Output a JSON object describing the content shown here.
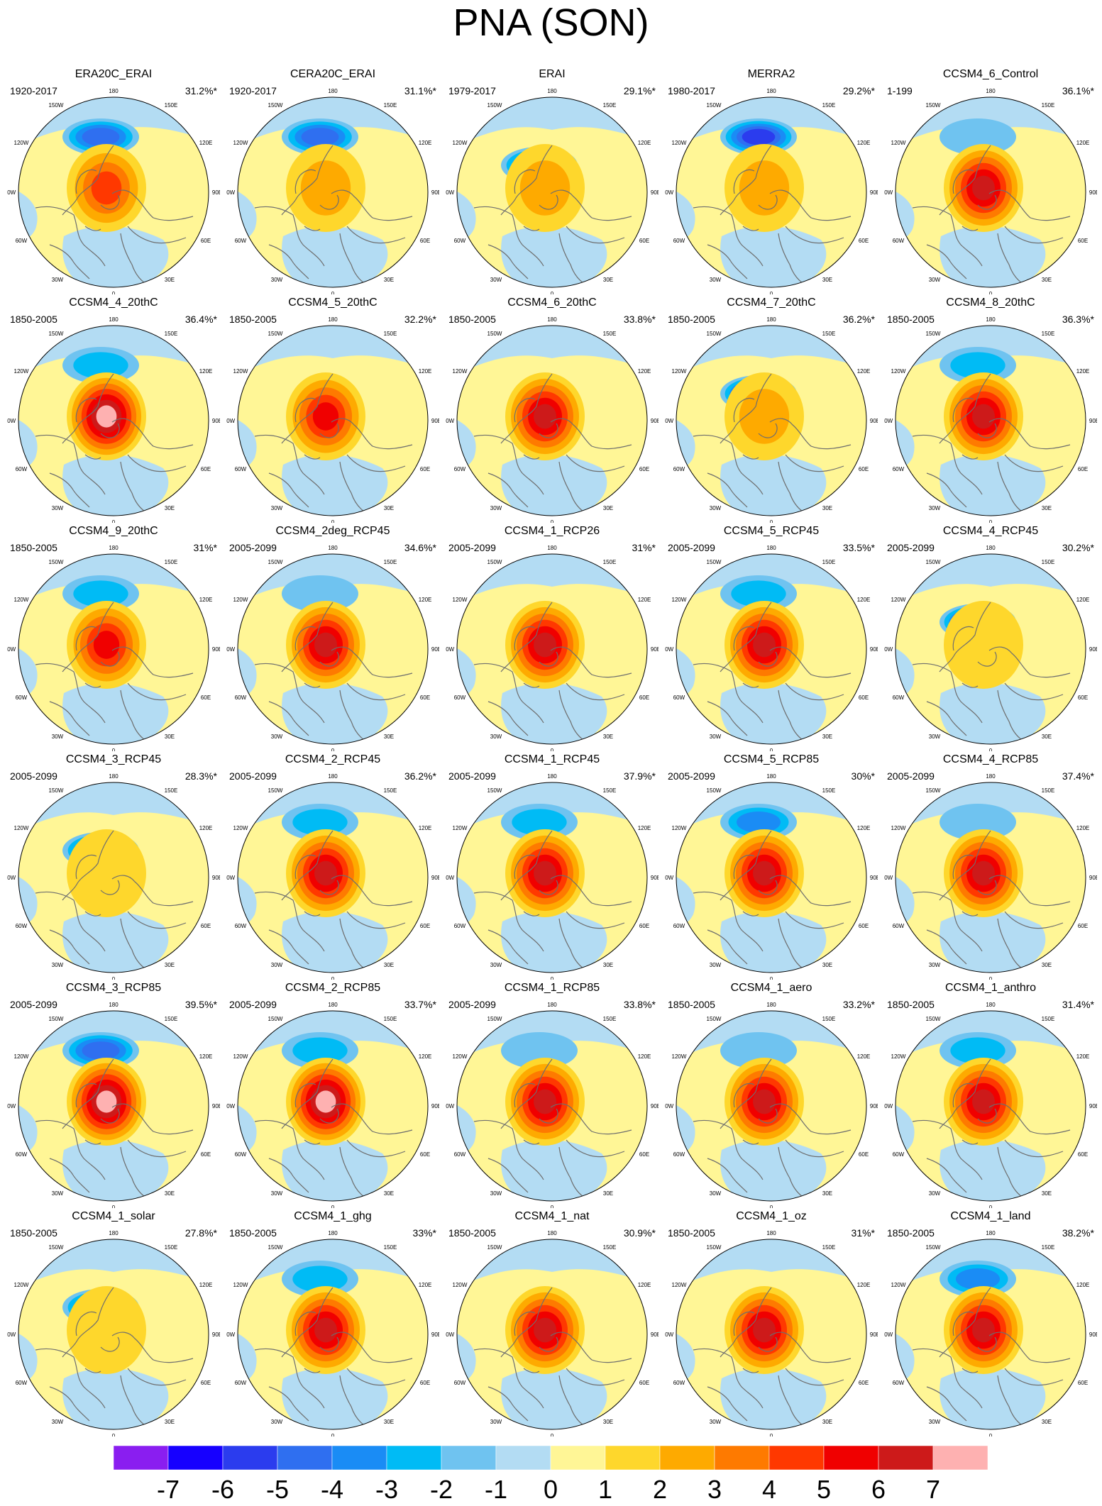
{
  "title": "PNA (SON)",
  "colors": {
    "scale": [
      "#8a1ef0",
      "#1600ff",
      "#2b3cee",
      "#2f6ff0",
      "#1a8cf5",
      "#00bbf5",
      "#6fc3f0",
      "#b3dcf3",
      "#fff696",
      "#fed72c",
      "#feaa00",
      "#fe7a00",
      "#ff3800",
      "#f00000",
      "#cd1a1a",
      "#feb1b1"
    ],
    "coast": "#6e6e6e"
  },
  "colorbar": {
    "labels": [
      "-7",
      "-6",
      "-5",
      "-4",
      "-3",
      "-2",
      "-1",
      "0",
      "1",
      "2",
      "3",
      "4",
      "5",
      "6",
      "7"
    ]
  },
  "lon_labels": [
    "180",
    "150W",
    "150E",
    "120W",
    "120E",
    "90W",
    "90E",
    "60W",
    "60E",
    "30W",
    "30E",
    "0"
  ],
  "panels": [
    {
      "title": "ERA20C_ERAI",
      "period": "1920-2017",
      "pct": "31.2%*",
      "pos": 0.55,
      "neg": -0.45
    },
    {
      "title": "CERA20C_ERAI",
      "period": "1920-2017",
      "pct": "31.1%*",
      "pos": 0.3,
      "neg": -0.45
    },
    {
      "title": "ERAI",
      "period": "1979-2017",
      "pct": "29.1%*",
      "pos": 0.2,
      "neg": -0.6
    },
    {
      "title": "MERRA2",
      "period": "1980-2017",
      "pct": "29.2%*",
      "pos": 0.3,
      "neg": -0.6
    },
    {
      "title": "CCSM4_6_Control",
      "period": "1-199",
      "pct": "36.1%*",
      "pos": 0.8,
      "neg": -0.1
    },
    {
      "title": "CCSM4_4_20thC",
      "period": "1850-2005",
      "pct": "36.4%*",
      "pos": 0.85,
      "neg": -0.3
    },
    {
      "title": "CCSM4_5_20thC",
      "period": "1850-2005",
      "pct": "32.2%*",
      "pos": 0.65,
      "neg": 0
    },
    {
      "title": "CCSM4_6_20thC",
      "period": "1850-2005",
      "pct": "33.8%*",
      "pos": 0.7,
      "neg": 0
    },
    {
      "title": "CCSM4_7_20thC",
      "period": "1850-2005",
      "pct": "36.2%*",
      "pos": 0.2,
      "neg": -0.7
    },
    {
      "title": "CCSM4_8_20thC",
      "period": "1850-2005",
      "pct": "36.3%*",
      "pos": 0.8,
      "neg": -0.3
    },
    {
      "title": "CCSM4_9_20thC",
      "period": "1850-2005",
      "pct": "31%*",
      "pos": 0.6,
      "neg": -0.3
    },
    {
      "title": "CCSM4_2deg_RCP45",
      "period": "2005-2099",
      "pct": "34.6%*",
      "pos": 0.7,
      "neg": -0.1
    },
    {
      "title": "CCSM4_1_RCP26",
      "period": "2005-2099",
      "pct": "31%*",
      "pos": 0.7,
      "neg": 0
    },
    {
      "title": "CCSM4_5_RCP45",
      "period": "2005-2099",
      "pct": "33.5%*",
      "pos": 0.8,
      "neg": -0.3
    },
    {
      "title": "CCSM4_4_RCP45",
      "period": "2005-2099",
      "pct": "30.2%*",
      "pos": 0.15,
      "neg": -0.7
    },
    {
      "title": "CCSM4_3_RCP45",
      "period": "2005-2099",
      "pct": "28.3%*",
      "pos": 0.1,
      "neg": -0.6
    },
    {
      "title": "CCSM4_2_RCP45",
      "period": "2005-2099",
      "pct": "36.2%*",
      "pos": 0.75,
      "neg": -0.3
    },
    {
      "title": "CCSM4_1_RCP45",
      "period": "2005-2099",
      "pct": "37.9%*",
      "pos": 0.8,
      "neg": -0.3
    },
    {
      "title": "CCSM4_5_RCP85",
      "period": "2005-2099",
      "pct": "30%*",
      "pos": 0.8,
      "neg": -0.4
    },
    {
      "title": "CCSM4_4_RCP85",
      "period": "2005-2099",
      "pct": "37.4%*",
      "pos": 0.75,
      "neg": -0.1
    },
    {
      "title": "CCSM4_3_RCP85",
      "period": "2005-2099",
      "pct": "39.5%*",
      "pos": 0.9,
      "neg": -0.5
    },
    {
      "title": "CCSM4_2_RCP85",
      "period": "2005-2099",
      "pct": "33.7%*",
      "pos": 0.85,
      "neg": -0.3
    },
    {
      "title": "CCSM4_1_RCP85",
      "period": "2005-2099",
      "pct": "33.8%*",
      "pos": 0.75,
      "neg": -0.1
    },
    {
      "title": "CCSM4_1_aero",
      "period": "1850-2005",
      "pct": "33.2%*",
      "pos": 0.8,
      "neg": -0.1
    },
    {
      "title": "CCSM4_1_anthro",
      "period": "1850-2005",
      "pct": "31.4%*",
      "pos": 0.7,
      "neg": -0.3
    },
    {
      "title": "CCSM4_1_solar",
      "period": "1850-2005",
      "pct": "27.8%*",
      "pos": 0.1,
      "neg": -0.6
    },
    {
      "title": "CCSM4_1_ghg",
      "period": "1850-2005",
      "pct": "33%*",
      "pos": 0.8,
      "neg": -0.3
    },
    {
      "title": "CCSM4_1_nat",
      "period": "1850-2005",
      "pct": "30.9%*",
      "pos": 0.7,
      "neg": 0
    },
    {
      "title": "CCSM4_1_oz",
      "period": "1850-2005",
      "pct": "31%*",
      "pos": 0.8,
      "neg": 0
    },
    {
      "title": "CCSM4_1_land",
      "period": "1850-2005",
      "pct": "38.2%*",
      "pos": 0.8,
      "neg": -0.4
    }
  ]
}
